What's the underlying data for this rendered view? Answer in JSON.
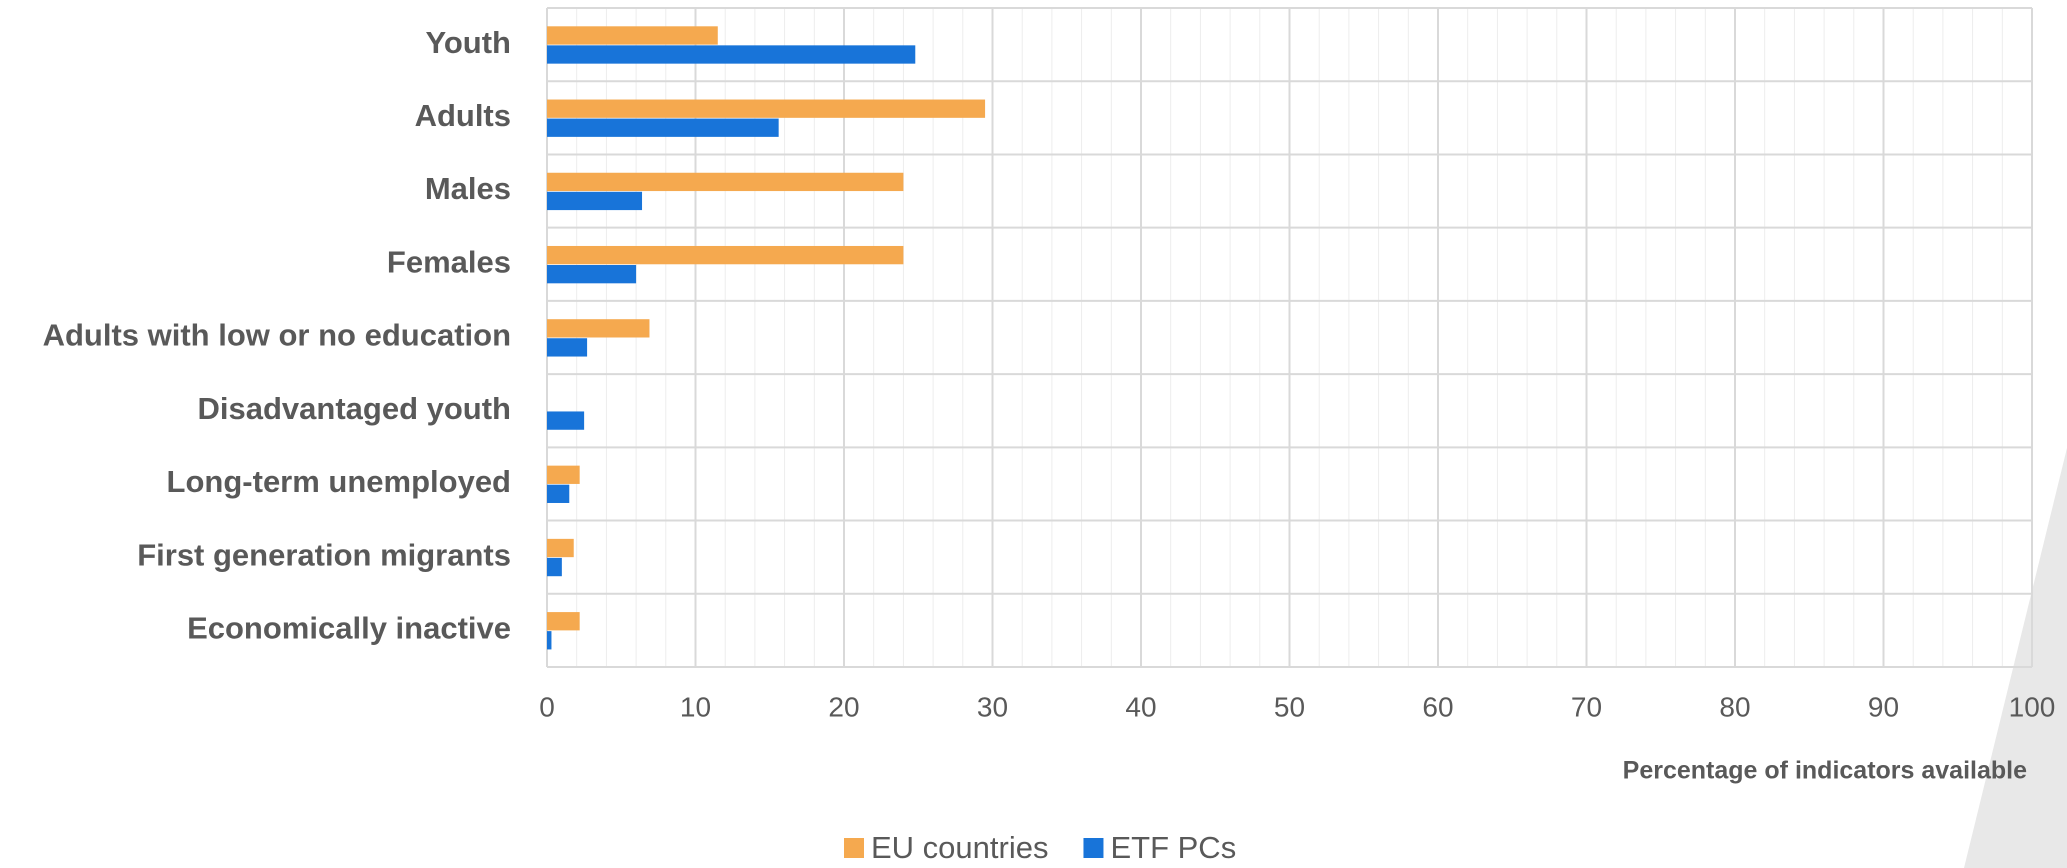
{
  "chart_data": {
    "type": "hbar",
    "x_label": "Percentage of indicators available",
    "categories": [
      "Youth",
      "Adults",
      "Males",
      "Females",
      "Adults with low or no education",
      "Disadvantaged youth",
      "Long-term unemployed",
      "First generation migrants",
      "Economically inactive"
    ],
    "series": [
      {
        "name": "EU countries",
        "color": "#f5a94f",
        "values": [
          11.5,
          29.5,
          24,
          24,
          6.9,
          0,
          2.2,
          1.8,
          2.2
        ]
      },
      {
        "name": "ETF PCs",
        "color": "#1874d9",
        "values": [
          24.8,
          15.6,
          6.4,
          6,
          2.7,
          2.5,
          1.5,
          1.0,
          0.3
        ]
      }
    ],
    "xlim": [
      0,
      100
    ],
    "xticks": [
      0,
      10,
      20,
      30,
      40,
      50,
      60,
      70,
      80,
      90,
      100
    ],
    "grid": true,
    "minor_grid_step": 2,
    "legend": "bottom"
  }
}
